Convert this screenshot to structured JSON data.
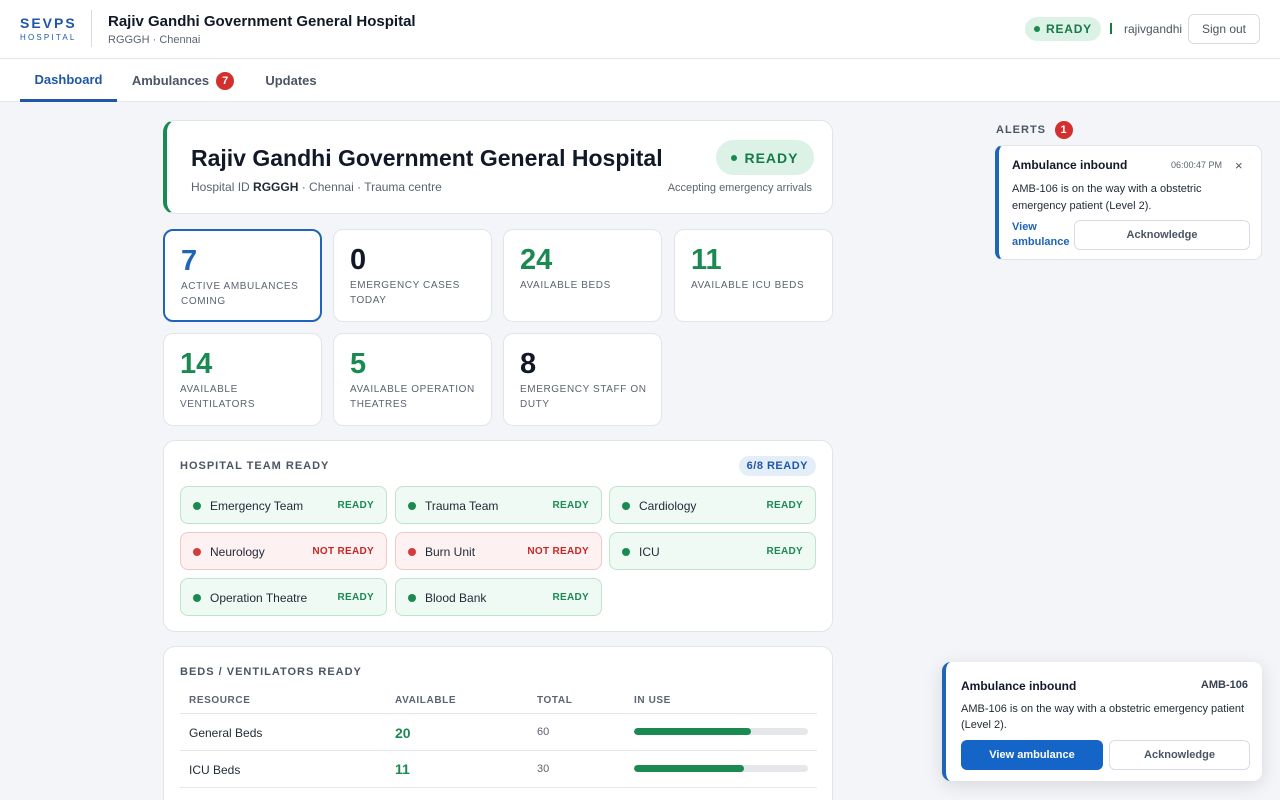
{
  "header": {
    "logo_main": "SEVPS",
    "logo_sub": "HOSPITAL",
    "title": "Rajiv Gandhi Government General Hospital",
    "subtitle": "RGGGH · Chennai",
    "status": "READY",
    "username": "rajivgandhi",
    "signout_label": "Sign out"
  },
  "tabs": [
    {
      "label": "Dashboard",
      "active": true
    },
    {
      "label": "Ambulances",
      "badge": "7"
    },
    {
      "label": "Updates"
    }
  ],
  "hospital": {
    "name": "Rajiv Gandhi Government General Hospital",
    "id_prefix": "Hospital ID",
    "id": "RGGGH",
    "meta_suffix": "· Chennai · Trauma centre",
    "status": "READY",
    "accepting": "Accepting emergency arrivals"
  },
  "stats": [
    {
      "value": "7",
      "label": "ACTIVE AMBULANCES COMING"
    },
    {
      "value": "0",
      "label": "EMERGENCY CASES TODAY"
    },
    {
      "value": "24",
      "label": "AVAILABLE BEDS"
    },
    {
      "value": "11",
      "label": "AVAILABLE ICU BEDS"
    },
    {
      "value": "14",
      "label": "AVAILABLE VENTILATORS"
    },
    {
      "value": "5",
      "label": "AVAILABLE OPERATION THEATRES"
    },
    {
      "value": "8",
      "label": "EMERGENCY STAFF ON DUTY"
    }
  ],
  "team_section": {
    "title": "HOSPITAL TEAM READY",
    "badge": "6/8 READY",
    "teams": [
      {
        "name": "Emergency Team",
        "status": "READY"
      },
      {
        "name": "Trauma Team",
        "status": "READY"
      },
      {
        "name": "Cardiology",
        "status": "READY"
      },
      {
        "name": "Neurology",
        "status": "NOT READY"
      },
      {
        "name": "Burn Unit",
        "status": "NOT READY"
      },
      {
        "name": "ICU",
        "status": "READY"
      },
      {
        "name": "Operation Theatre",
        "status": "READY"
      },
      {
        "name": "Blood Bank",
        "status": "READY"
      }
    ]
  },
  "beds_section": {
    "title": "BEDS / VENTILATORS READY",
    "columns": [
      "RESOURCE",
      "AVAILABLE",
      "TOTAL",
      "IN USE"
    ],
    "rows": [
      {
        "resource": "General Beds",
        "available": "20",
        "total": "60",
        "in_use_fraction": 0.67
      },
      {
        "resource": "ICU Beds",
        "available": "11",
        "total": "30",
        "in_use_fraction": 0.63
      }
    ]
  },
  "alerts": {
    "title": "ALERTS",
    "count": "1",
    "items": [
      {
        "title": "Ambulance inbound",
        "time": "06:00:47 PM",
        "close_icon": "×",
        "body": "AMB-106 is on the way with a obstetric emergency patient (Level 2).",
        "view_label": "View ambulance",
        "ack_label": "Acknowledge"
      }
    ]
  },
  "toast": {
    "title": "Ambulance inbound",
    "id": "AMB-106",
    "body": "AMB-106 is on the way with a obstetric emergency patient (Level 2).",
    "view_label": "View ambulance",
    "ack_label": "Acknowledge"
  },
  "colors": {
    "brand": "#1f56a8",
    "ready_green": "#1b8a52",
    "not_ready_red": "#c62828",
    "accent_blue": "#1f64b8"
  }
}
